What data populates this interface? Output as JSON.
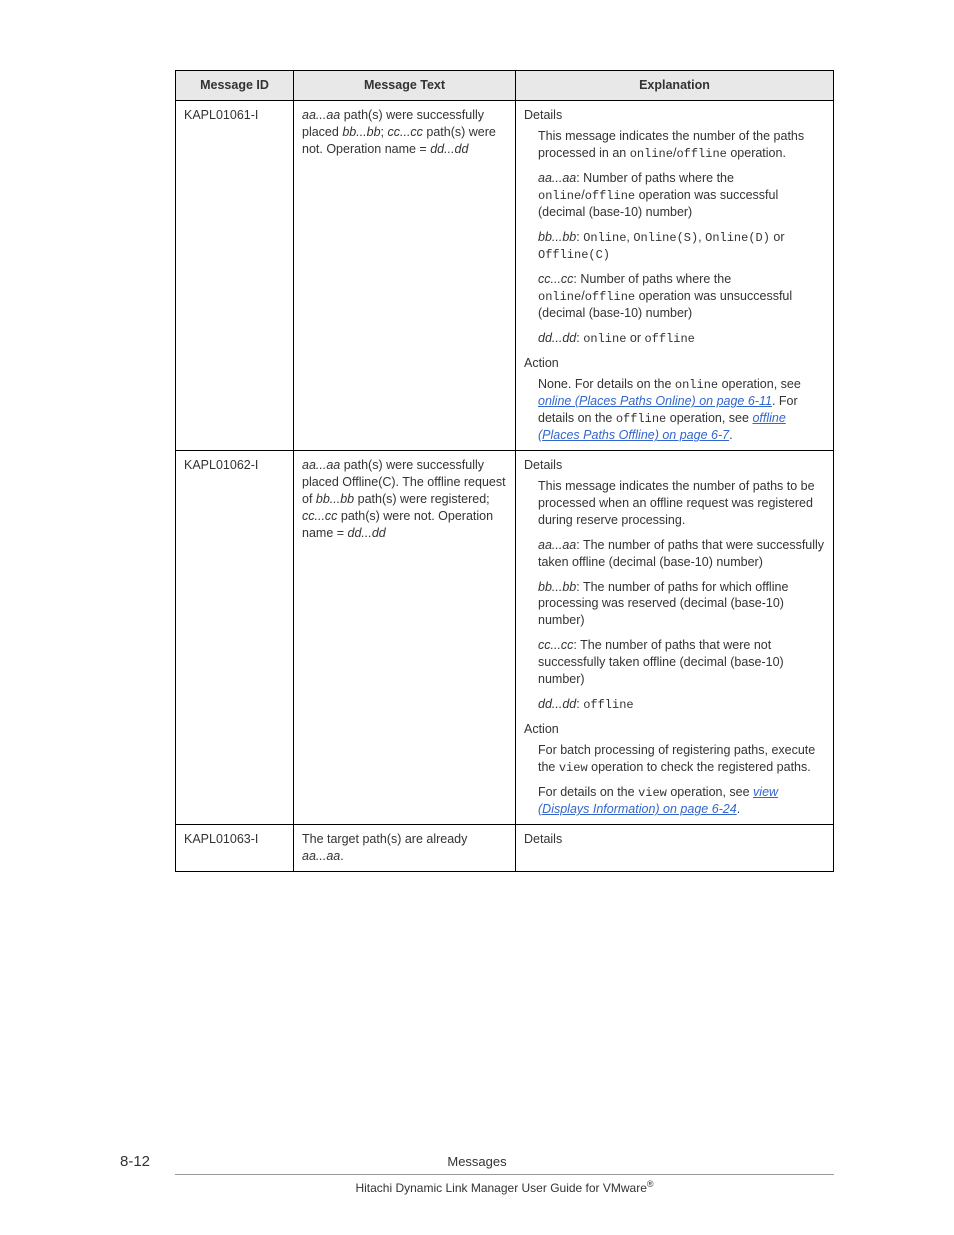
{
  "table": {
    "headers": {
      "id": "Message ID",
      "text": "Message Text",
      "exp": "Explanation"
    },
    "rows": [
      {
        "id": "KAPL01061-I",
        "text": {
          "prefix_it1": "aa...aa",
          "t1": " path(s) were successfully placed ",
          "it2": "bb...bb",
          "t2": "; ",
          "it3": "cc...cc",
          "t3": " path(s) were not. Operation name = ",
          "it4": "dd...dd"
        },
        "exp": {
          "details_label": "Details",
          "d1_a": "This message indicates the number of the paths processed in an ",
          "d1_m1": "online",
          "d1_b": "/",
          "d1_m2": "offline",
          "d1_c": " operation.",
          "d2_i": "aa...aa",
          "d2_a": ": Number of paths where the ",
          "d2_m1": "online",
          "d2_b": "/",
          "d2_m2": "offline",
          "d2_c": " operation was successful (decimal (base-10) number)",
          "d3_i": "bb...bb",
          "d3_a": ": ",
          "d3_m1": "Online",
          "d3_b": ", ",
          "d3_m2": "Online(S)",
          "d3_c": ", ",
          "d3_m3": "Online(D)",
          "d3_d": " or ",
          "d3_m4": "Offline(C)",
          "d4_i": "cc...cc",
          "d4_a": ": Number of paths where the ",
          "d4_m1": "online",
          "d4_b": "/",
          "d4_m2": "offline",
          "d4_c": " operation was unsuccessful (decimal (base-10) number)",
          "d5_i": "dd...dd",
          "d5_a": ": ",
          "d5_m1": "online",
          "d5_b": " or ",
          "d5_m2": "offline",
          "action_label": "Action",
          "a1_a": "None. For details on the ",
          "a1_m1": "online",
          "a1_b": " operation, see ",
          "a1_link1": "online (Places Paths Online) on page 6-11",
          "a1_c": ". For details on the ",
          "a1_m2": "offline",
          "a1_d": " operation, see ",
          "a1_link2": "offline (Places Paths Offline) on page 6-7",
          "a1_e": "."
        }
      },
      {
        "id": "KAPL01062-I",
        "text": {
          "prefix_it1": "aa...aa",
          "t1": " path(s) were successfully placed Offline(C). The offline request of ",
          "it2": "bb...bb",
          "t2": " path(s) were registered; ",
          "it3": "cc...cc",
          "t3": " path(s) were not. Operation name = ",
          "it4": "dd...dd"
        },
        "exp": {
          "details_label": "Details",
          "d1": "This message indicates the number of paths to be processed when an offline request was registered during reserve processing.",
          "d2_i": "aa...aa",
          "d2_a": ": The number of paths that were successfully taken offline (decimal (base-10) number)",
          "d3_i": "bb...bb",
          "d3_a": ": The number of paths for which offline processing was reserved (decimal (base-10) number)",
          "d4_i": "cc...cc",
          "d4_a": ": The number of paths that were not successfully taken offline (decimal (base-10) number)",
          "d5_i": "dd...dd",
          "d5_a": ": ",
          "d5_m1": "offline",
          "action_label": "Action",
          "a1_a": "For batch processing of registering paths, execute the ",
          "a1_m1": "view",
          "a1_b": " operation to check the registered paths.",
          "a2_a": "For details on the ",
          "a2_m1": "view",
          "a2_b": " operation, see ",
          "a2_link1": "view (Displays Information) on page 6-24",
          "a2_c": "."
        }
      },
      {
        "id": "KAPL01063-I",
        "text": {
          "t1": "The target path(s) are already ",
          "it1": "aa...aa",
          "t2": "."
        },
        "exp": {
          "details_label": "Details"
        }
      }
    ]
  },
  "footer": {
    "page_num": "8-12",
    "section": "Messages",
    "book_a": "Hitachi Dynamic Link Manager User Guide for VMware",
    "book_sup": "®"
  }
}
